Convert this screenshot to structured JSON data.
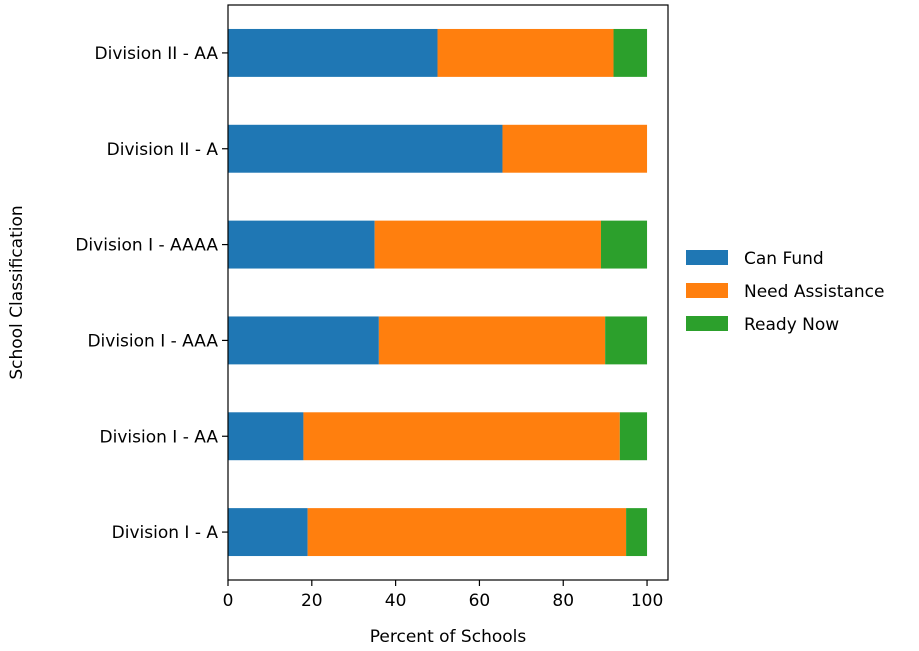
{
  "chart_data": {
    "type": "bar",
    "orientation": "horizontal",
    "stacked": true,
    "categories": [
      "Division I - A",
      "Division I - AA",
      "Division I - AAA",
      "Division I - AAAA",
      "Division II - A",
      "Division II - AA"
    ],
    "series": [
      {
        "name": "Can Fund",
        "color": "#1f77b4",
        "values": [
          19,
          18,
          36,
          35,
          65.5,
          50
        ]
      },
      {
        "name": "Need Assistance",
        "color": "#ff7f0e",
        "values": [
          76,
          75.5,
          54,
          54,
          34.5,
          42
        ]
      },
      {
        "name": "Ready Now",
        "color": "#2ca02c",
        "values": [
          5,
          6.5,
          10,
          11,
          0,
          8
        ]
      }
    ],
    "xlabel": "Percent of Schools",
    "ylabel": "School Classification",
    "xlim": [
      0,
      105
    ],
    "xticks": [
      0,
      20,
      40,
      60,
      80,
      100
    ],
    "grid": false,
    "legend_position": "right"
  }
}
